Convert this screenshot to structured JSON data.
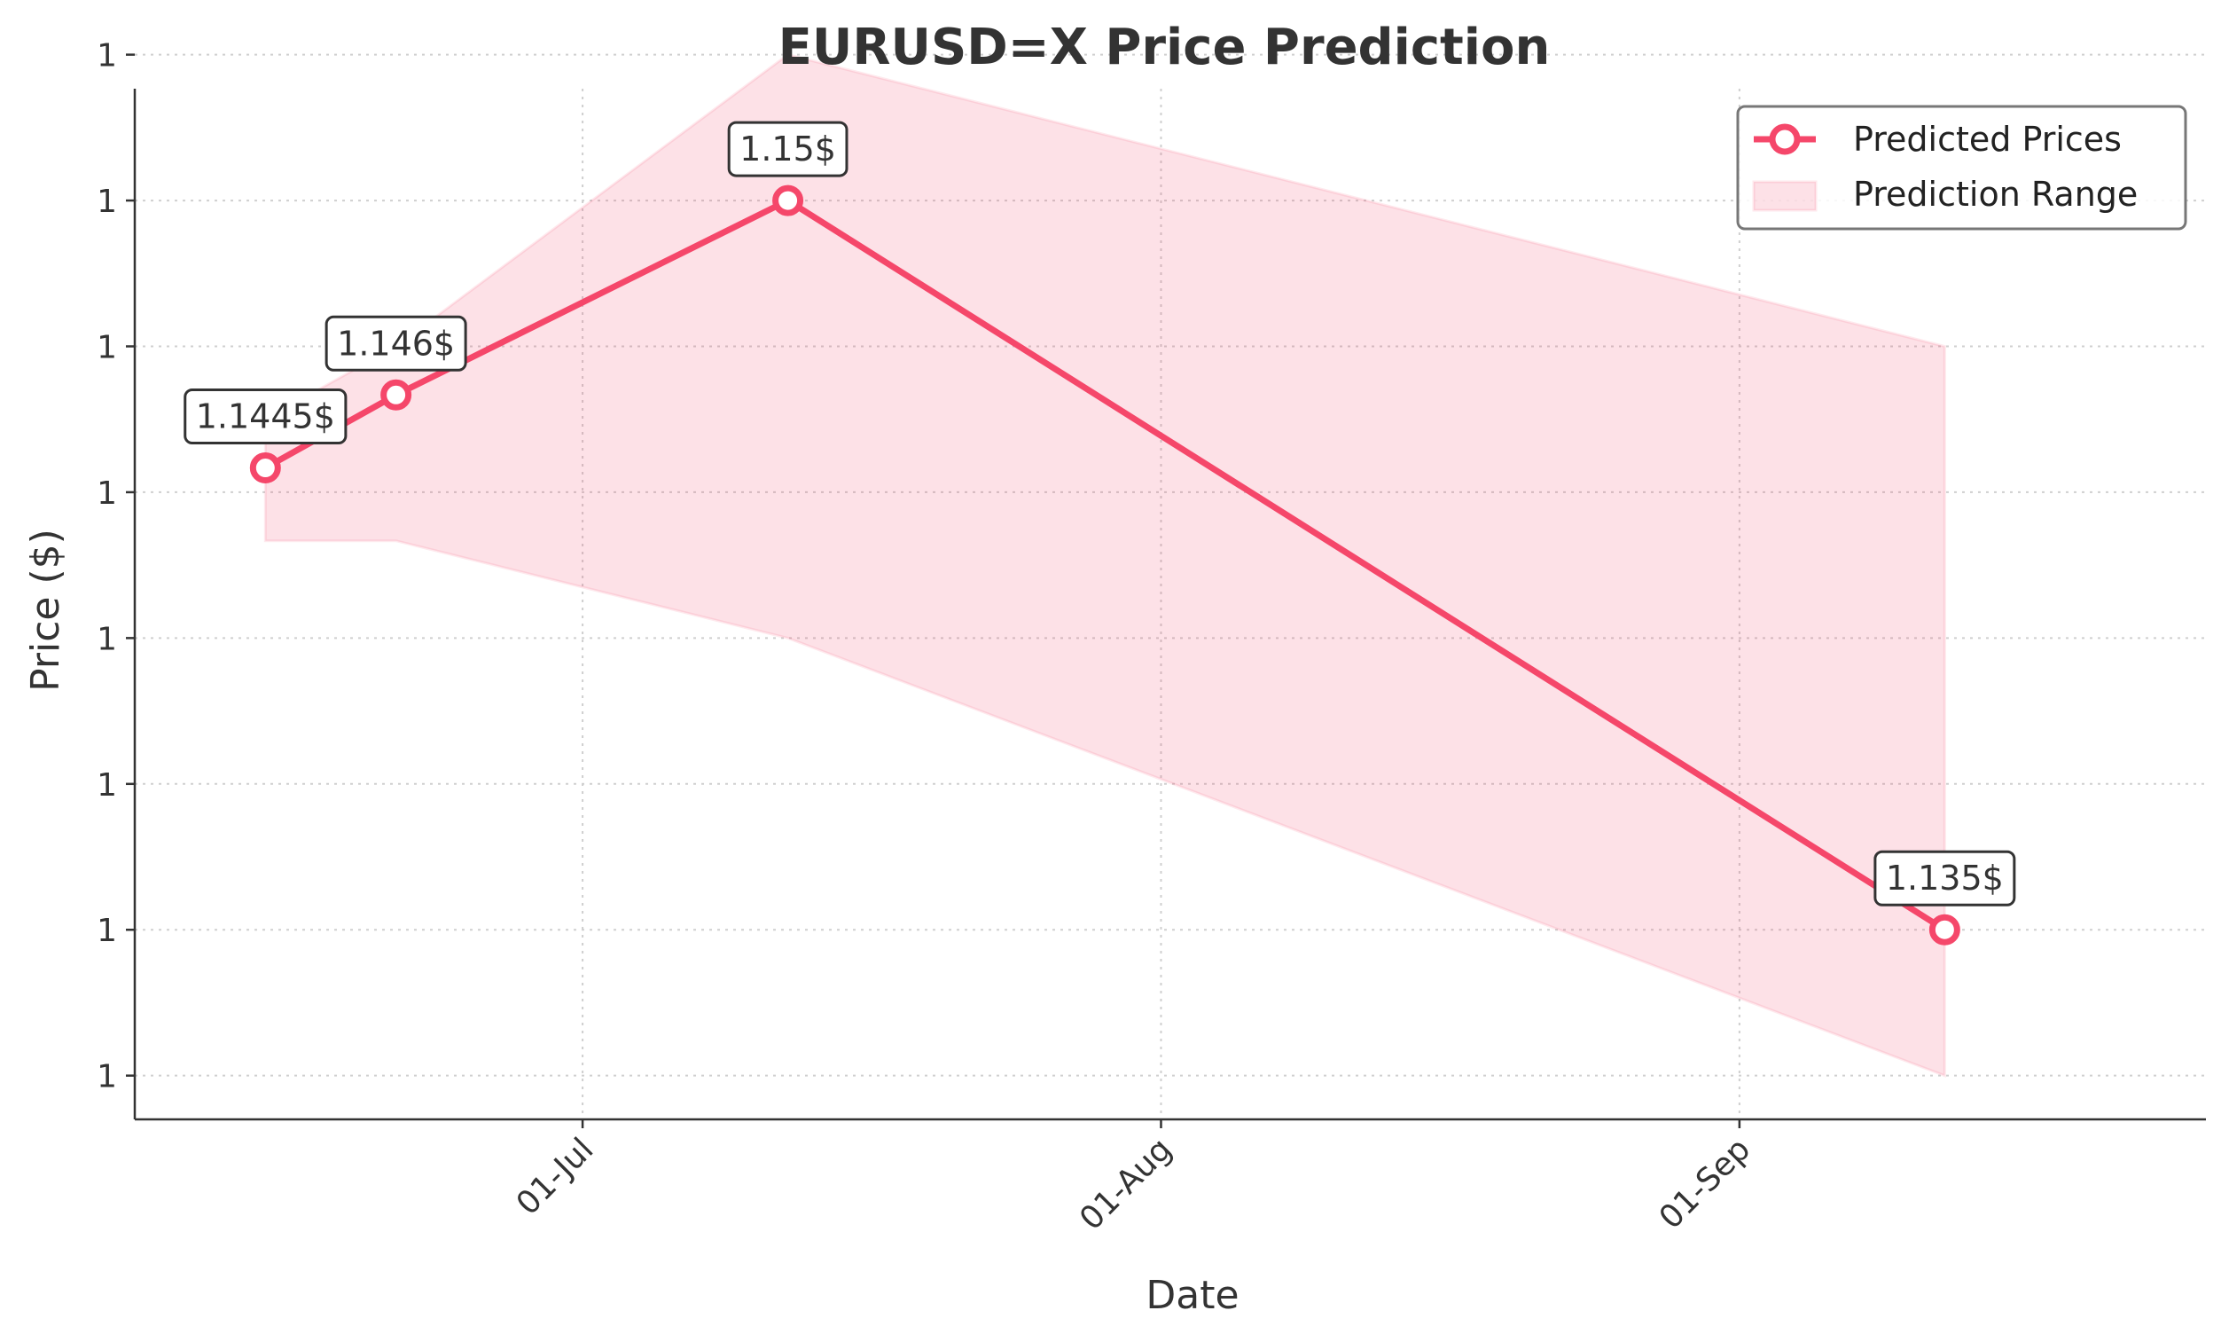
{
  "chart_data": {
    "type": "line",
    "title": "EURUSD=X Price Prediction",
    "xlabel": "Date",
    "ylabel": "Price ($)",
    "x_ticks": [
      {
        "date": "2025-07-01",
        "label": "01-Jul"
      },
      {
        "date": "2025-08-01",
        "label": "01-Aug"
      },
      {
        "date": "2025-09-01",
        "label": "01-Sep"
      }
    ],
    "xlim": [
      "2025-06-07",
      "2025-09-26"
    ],
    "ylim": [
      1.1311,
      1.1523
    ],
    "y_ticks": [
      {
        "value": 1.132,
        "label": "1"
      },
      {
        "value": 1.135,
        "label": "1"
      },
      {
        "value": 1.138,
        "label": "1"
      },
      {
        "value": 1.141,
        "label": "1"
      },
      {
        "value": 1.144,
        "label": "1"
      },
      {
        "value": 1.147,
        "label": "1"
      },
      {
        "value": 1.15,
        "label": "1"
      },
      {
        "value": 1.153,
        "label": "1"
      }
    ],
    "series": [
      {
        "name": "Predicted Prices",
        "color": "#f5476a",
        "points": [
          {
            "date": "2025-06-14",
            "value": 1.1445,
            "label": "1.1445$"
          },
          {
            "date": "2025-06-21",
            "value": 1.146,
            "label": "1.146$"
          },
          {
            "date": "2025-07-12",
            "value": 1.15,
            "label": "1.15$"
          },
          {
            "date": "2025-09-12",
            "value": 1.135,
            "label": "1.135$"
          }
        ]
      }
    ],
    "range": {
      "name": "Prediction Range",
      "color": "#f5476a",
      "points": [
        {
          "date": "2025-06-14",
          "low": 1.143,
          "high": 1.1455
        },
        {
          "date": "2025-06-21",
          "low": 1.143,
          "high": 1.147
        },
        {
          "date": "2025-07-12",
          "low": 1.141,
          "high": 1.153
        },
        {
          "date": "2025-09-12",
          "low": 1.132,
          "high": 1.147
        }
      ]
    },
    "grid": true,
    "legend_position": "top-right"
  }
}
